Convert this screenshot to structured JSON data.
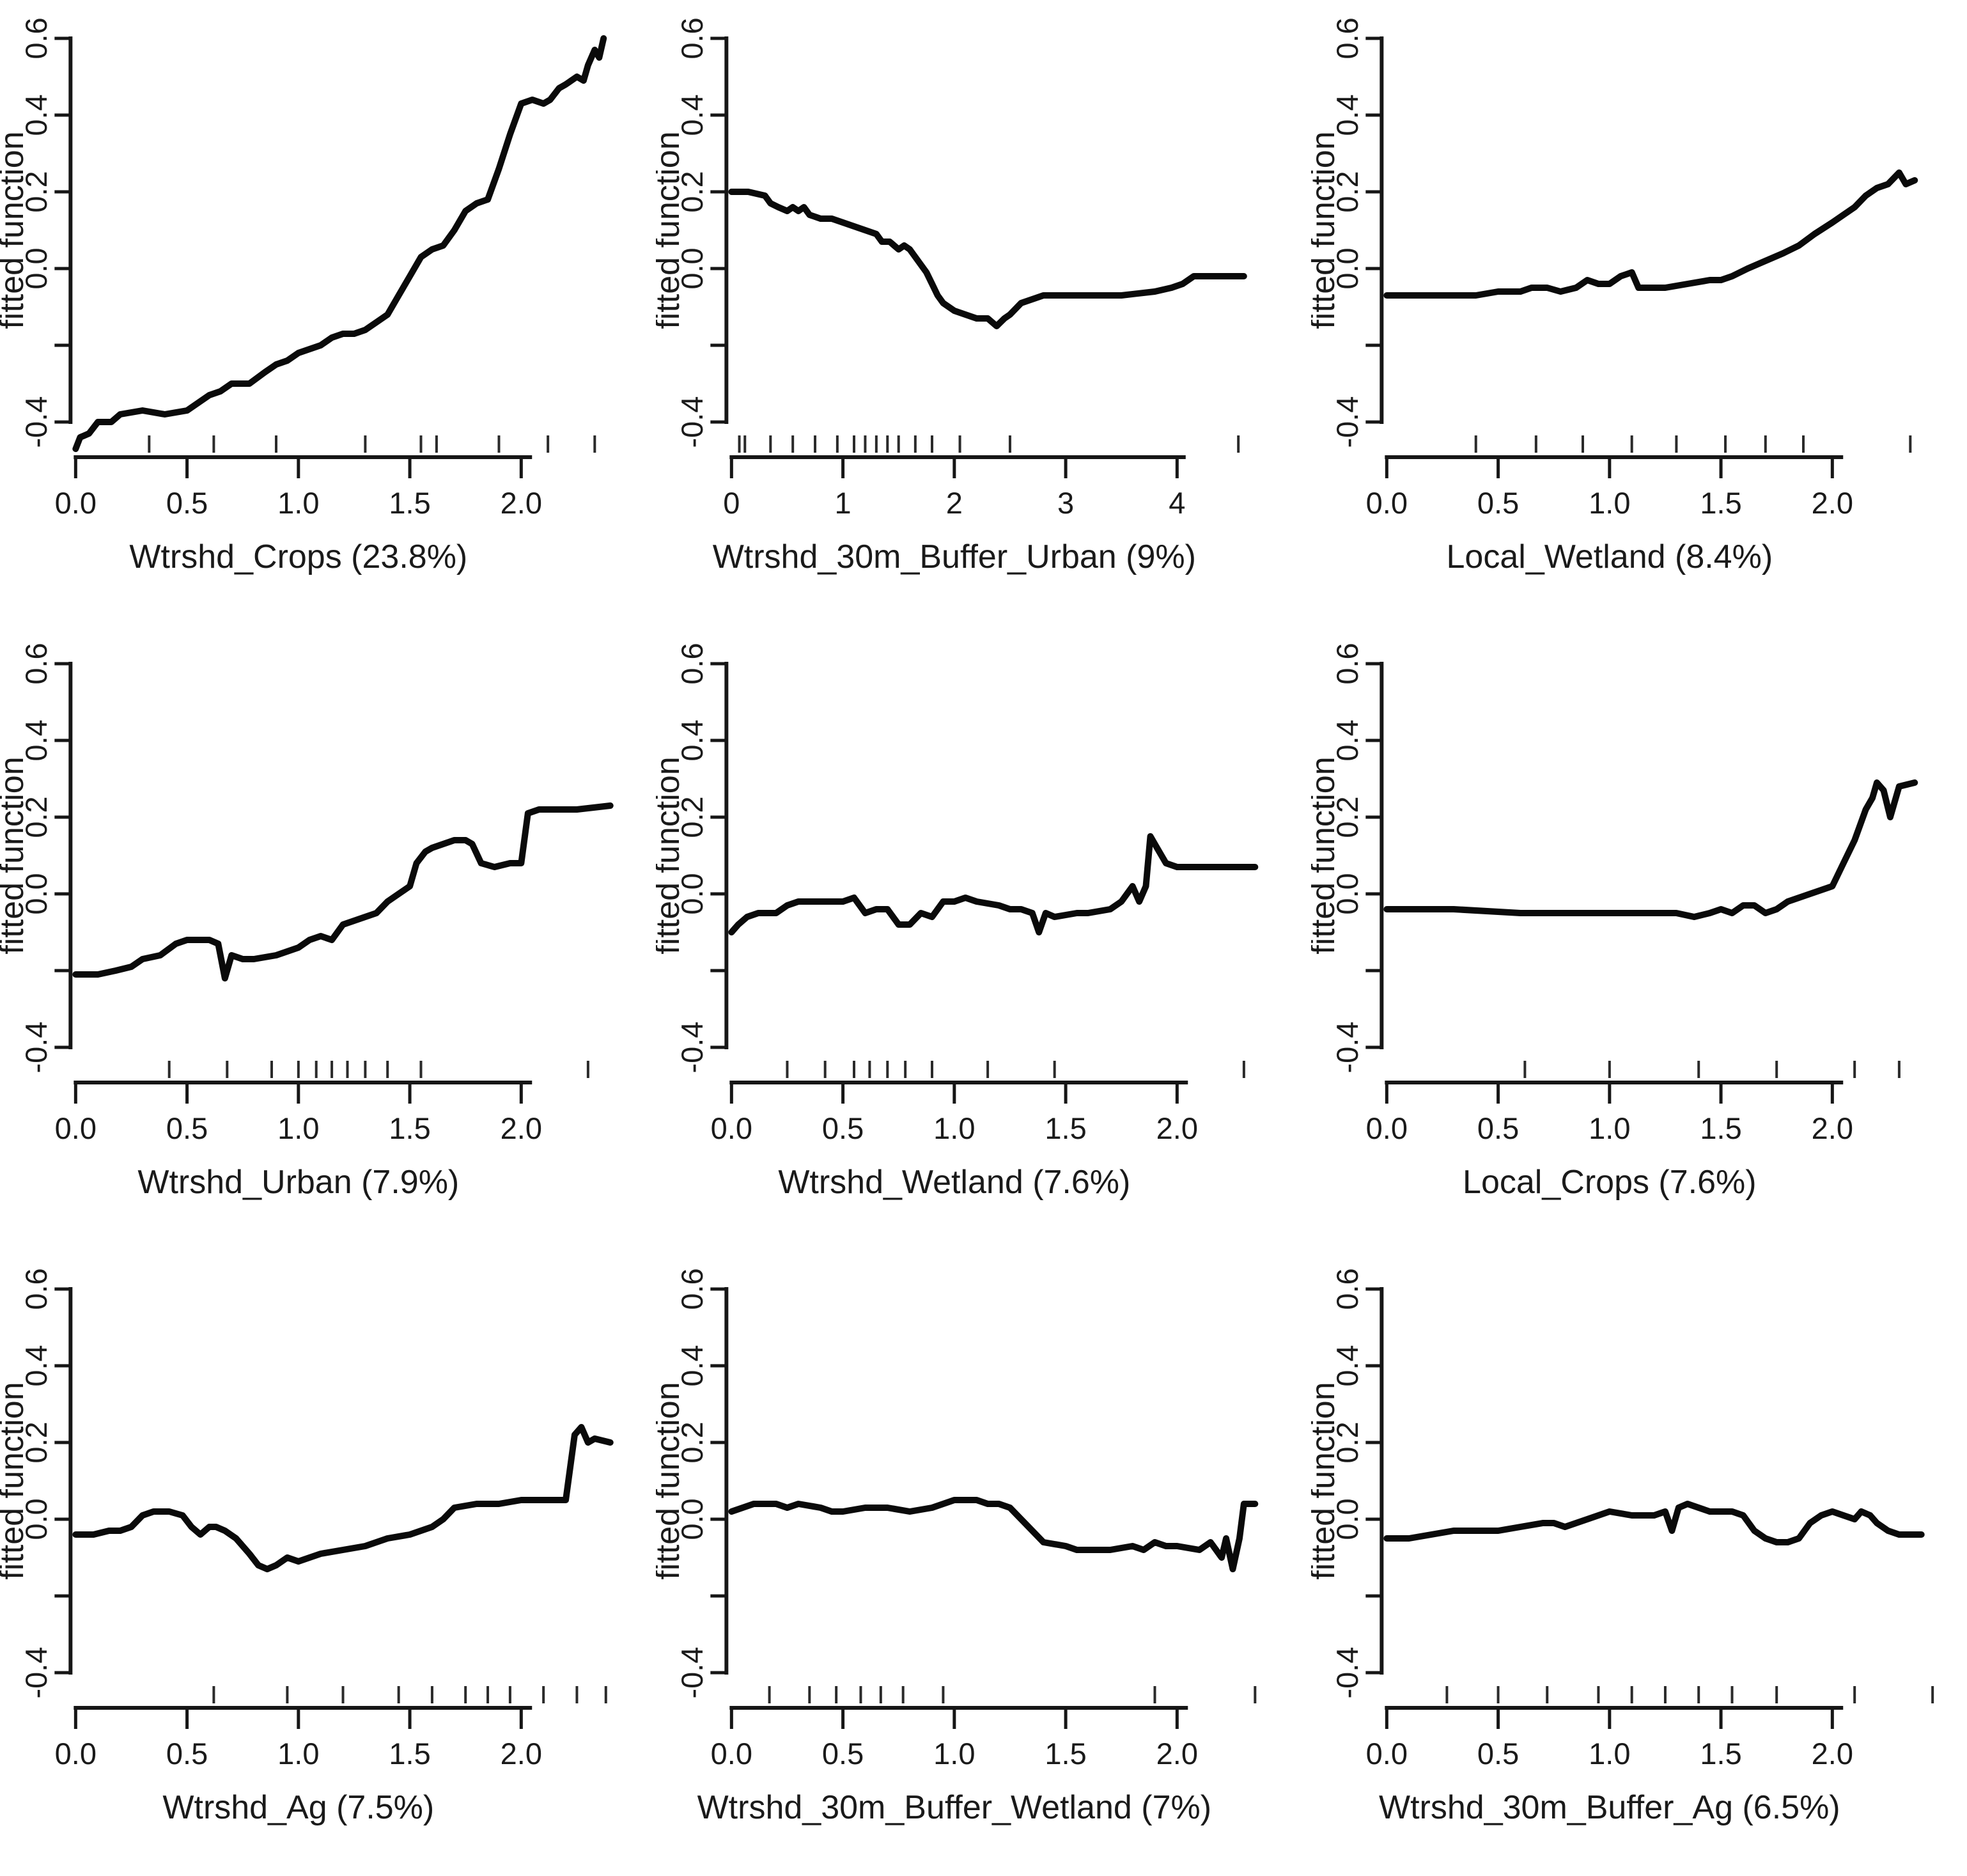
{
  "figure": {
    "background": "#ffffff",
    "curve_color": "#0a0a0a",
    "text_color": "#1a1a1a",
    "ylabel": "fitted function",
    "layout": "3x3 grid of fitted-function partial dependence line plots"
  },
  "chart_data": [
    {
      "type": "line",
      "xlabel": "Wtrshd_Crops  (23.8%)",
      "ylabel": "fitted function",
      "xlim": [
        0,
        2.45
      ],
      "ylim": [
        -0.5,
        0.65
      ],
      "xticks": [
        0.0,
        0.5,
        1.0,
        1.5,
        2.0
      ],
      "xtick_labels": [
        "0.0",
        "0.5",
        "1.0",
        "1.5",
        "2.0"
      ],
      "yticks": [
        0.6,
        0.4,
        0.2,
        0.0,
        -0.2,
        -0.4
      ],
      "ytick_labels": [
        "0.6",
        "0.4",
        "0.2",
        "0.0",
        "",
        "-0.4"
      ],
      "axis_span": [
        0,
        2.04
      ],
      "grid": false,
      "legend": false,
      "rug": [
        0.33,
        0.62,
        0.9,
        1.3,
        1.55,
        1.62,
        1.9,
        2.12,
        2.33
      ],
      "x": [
        0,
        0.02,
        0.06,
        0.1,
        0.16,
        0.2,
        0.3,
        0.4,
        0.5,
        0.55,
        0.6,
        0.65,
        0.7,
        0.78,
        0.85,
        0.9,
        0.95,
        1.0,
        1.05,
        1.1,
        1.15,
        1.2,
        1.25,
        1.3,
        1.35,
        1.4,
        1.45,
        1.5,
        1.55,
        1.6,
        1.65,
        1.7,
        1.75,
        1.8,
        1.85,
        1.9,
        1.95,
        2.0,
        2.05,
        2.1,
        2.13,
        2.17,
        2.2,
        2.25,
        2.28,
        2.3,
        2.33,
        2.35,
        2.37
      ],
      "y": [
        -0.47,
        -0.44,
        -0.43,
        -0.4,
        -0.4,
        -0.38,
        -0.37,
        -0.38,
        -0.37,
        -0.35,
        -0.33,
        -0.32,
        -0.3,
        -0.3,
        -0.27,
        -0.25,
        -0.24,
        -0.22,
        -0.21,
        -0.2,
        -0.18,
        -0.17,
        -0.17,
        -0.16,
        -0.14,
        -0.12,
        -0.07,
        -0.02,
        0.03,
        0.05,
        0.06,
        0.1,
        0.15,
        0.17,
        0.18,
        0.26,
        0.35,
        0.43,
        0.44,
        0.43,
        0.44,
        0.47,
        0.48,
        0.5,
        0.49,
        0.53,
        0.57,
        0.55,
        0.6
      ]
    },
    {
      "type": "line",
      "xlabel": "Wtrshd_30m_Buffer_Urban  (9%)",
      "ylabel": "fitted function",
      "xlim": [
        0,
        4.65
      ],
      "ylim": [
        -0.5,
        0.65
      ],
      "xticks": [
        0,
        1,
        2,
        3,
        4
      ],
      "xtick_labels": [
        "0",
        "1",
        "2",
        "3",
        "4"
      ],
      "yticks": [
        0.6,
        0.4,
        0.2,
        0.0,
        -0.2,
        -0.4
      ],
      "ytick_labels": [
        "0.6",
        "0.4",
        "0.2",
        "0.0",
        "",
        "-0.4"
      ],
      "axis_span": [
        0,
        4.06
      ],
      "grid": false,
      "legend": false,
      "rug": [
        0.07,
        0.12,
        0.35,
        0.55,
        0.75,
        0.95,
        1.1,
        1.2,
        1.3,
        1.4,
        1.5,
        1.65,
        1.8,
        2.05,
        2.5,
        4.55
      ],
      "x": [
        0,
        0.15,
        0.3,
        0.35,
        0.42,
        0.5,
        0.55,
        0.6,
        0.65,
        0.7,
        0.8,
        0.9,
        1.0,
        1.1,
        1.2,
        1.3,
        1.35,
        1.42,
        1.5,
        1.55,
        1.6,
        1.65,
        1.7,
        1.75,
        1.8,
        1.85,
        1.9,
        2.0,
        2.1,
        2.2,
        2.3,
        2.38,
        2.45,
        2.5,
        2.6,
        2.7,
        2.8,
        3.0,
        3.2,
        3.5,
        3.8,
        3.95,
        4.05,
        4.15,
        4.3,
        4.6
      ],
      "y": [
        0.2,
        0.2,
        0.19,
        0.17,
        0.16,
        0.15,
        0.16,
        0.15,
        0.16,
        0.14,
        0.13,
        0.13,
        0.12,
        0.11,
        0.1,
        0.09,
        0.07,
        0.07,
        0.05,
        0.06,
        0.05,
        0.03,
        0.01,
        -0.01,
        -0.04,
        -0.07,
        -0.09,
        -0.11,
        -0.12,
        -0.13,
        -0.13,
        -0.15,
        -0.13,
        -0.12,
        -0.09,
        -0.08,
        -0.07,
        -0.07,
        -0.07,
        -0.07,
        -0.06,
        -0.05,
        -0.04,
        -0.02,
        -0.02,
        -0.02
      ]
    },
    {
      "type": "line",
      "xlabel": "Local_Wetland  (8.4%)",
      "ylabel": "fitted function",
      "xlim": [
        0,
        2.45
      ],
      "ylim": [
        -0.5,
        0.65
      ],
      "xticks": [
        0.0,
        0.5,
        1.0,
        1.5,
        2.0
      ],
      "xtick_labels": [
        "0.0",
        "0.5",
        "1.0",
        "1.5",
        "2.0"
      ],
      "yticks": [
        0.6,
        0.4,
        0.2,
        0.0,
        -0.2,
        -0.4
      ],
      "ytick_labels": [
        "0.6",
        "0.4",
        "0.2",
        "0.0",
        "",
        "-0.4"
      ],
      "axis_span": [
        0,
        2.04
      ],
      "grid": false,
      "legend": false,
      "rug": [
        0.4,
        0.67,
        0.88,
        1.1,
        1.3,
        1.52,
        1.7,
        1.87,
        2.35
      ],
      "x": [
        0,
        0.2,
        0.4,
        0.5,
        0.6,
        0.65,
        0.72,
        0.78,
        0.85,
        0.9,
        0.95,
        1.0,
        1.05,
        1.1,
        1.13,
        1.18,
        1.25,
        1.35,
        1.45,
        1.5,
        1.55,
        1.62,
        1.7,
        1.78,
        1.85,
        1.92,
        2.0,
        2.05,
        2.1,
        2.15,
        2.2,
        2.25,
        2.3,
        2.33,
        2.37
      ],
      "y": [
        -0.07,
        -0.07,
        -0.07,
        -0.06,
        -0.06,
        -0.05,
        -0.05,
        -0.06,
        -0.05,
        -0.03,
        -0.04,
        -0.04,
        -0.02,
        -0.01,
        -0.05,
        -0.05,
        -0.05,
        -0.04,
        -0.03,
        -0.03,
        -0.02,
        0.0,
        0.02,
        0.04,
        0.06,
        0.09,
        0.12,
        0.14,
        0.16,
        0.19,
        0.21,
        0.22,
        0.25,
        0.22,
        0.23
      ]
    },
    {
      "type": "line",
      "xlabel": "Wtrshd_Urban  (7.9%)",
      "ylabel": "fitted function",
      "xlim": [
        0,
        2.45
      ],
      "ylim": [
        -0.5,
        0.65
      ],
      "xticks": [
        0.0,
        0.5,
        1.0,
        1.5,
        2.0
      ],
      "xtick_labels": [
        "0.0",
        "0.5",
        "1.0",
        "1.5",
        "2.0"
      ],
      "yticks": [
        0.6,
        0.4,
        0.2,
        0.0,
        -0.2,
        -0.4
      ],
      "ytick_labels": [
        "0.6",
        "0.4",
        "0.2",
        "0.0",
        "",
        "-0.4"
      ],
      "axis_span": [
        0,
        2.04
      ],
      "grid": false,
      "legend": false,
      "rug": [
        0.42,
        0.68,
        0.88,
        1.0,
        1.08,
        1.15,
        1.22,
        1.3,
        1.4,
        1.55,
        2.3
      ],
      "x": [
        0,
        0.1,
        0.18,
        0.25,
        0.3,
        0.38,
        0.45,
        0.5,
        0.55,
        0.6,
        0.64,
        0.67,
        0.7,
        0.75,
        0.8,
        0.9,
        0.95,
        1.0,
        1.05,
        1.1,
        1.15,
        1.2,
        1.3,
        1.35,
        1.4,
        1.45,
        1.5,
        1.53,
        1.57,
        1.6,
        1.65,
        1.7,
        1.75,
        1.78,
        1.82,
        1.88,
        1.95,
        2.0,
        2.03,
        2.08,
        2.15,
        2.25,
        2.4
      ],
      "y": [
        -0.21,
        -0.21,
        -0.2,
        -0.19,
        -0.17,
        -0.16,
        -0.13,
        -0.12,
        -0.12,
        -0.12,
        -0.13,
        -0.22,
        -0.16,
        -0.17,
        -0.17,
        -0.16,
        -0.15,
        -0.14,
        -0.12,
        -0.11,
        -0.12,
        -0.08,
        -0.06,
        -0.05,
        -0.02,
        0.0,
        0.02,
        0.08,
        0.11,
        0.12,
        0.13,
        0.14,
        0.14,
        0.13,
        0.08,
        0.07,
        0.08,
        0.08,
        0.21,
        0.22,
        0.22,
        0.22,
        0.23
      ]
    },
    {
      "type": "line",
      "xlabel": "Wtrshd_Wetland  (7.6%)",
      "ylabel": "fitted function",
      "xlim": [
        0,
        2.45
      ],
      "ylim": [
        -0.5,
        0.65
      ],
      "xticks": [
        0.0,
        0.5,
        1.0,
        1.5,
        2.0
      ],
      "xtick_labels": [
        "0.0",
        "0.5",
        "1.0",
        "1.5",
        "2.0"
      ],
      "yticks": [
        0.6,
        0.4,
        0.2,
        0.0,
        -0.2,
        -0.4
      ],
      "ytick_labels": [
        "0.6",
        "0.4",
        "0.2",
        "0.0",
        "",
        "-0.4"
      ],
      "axis_span": [
        0,
        2.04
      ],
      "grid": false,
      "legend": false,
      "rug": [
        0.25,
        0.42,
        0.55,
        0.62,
        0.7,
        0.78,
        0.9,
        1.15,
        1.45,
        2.3
      ],
      "x": [
        0,
        0.03,
        0.07,
        0.12,
        0.2,
        0.25,
        0.3,
        0.4,
        0.5,
        0.55,
        0.6,
        0.65,
        0.7,
        0.75,
        0.8,
        0.85,
        0.9,
        0.95,
        1.0,
        1.05,
        1.1,
        1.2,
        1.25,
        1.3,
        1.35,
        1.38,
        1.41,
        1.45,
        1.55,
        1.6,
        1.7,
        1.75,
        1.8,
        1.83,
        1.86,
        1.88,
        1.91,
        1.95,
        2.0,
        2.1,
        2.2,
        2.35
      ],
      "y": [
        -0.1,
        -0.08,
        -0.06,
        -0.05,
        -0.05,
        -0.03,
        -0.02,
        -0.02,
        -0.02,
        -0.01,
        -0.05,
        -0.04,
        -0.04,
        -0.08,
        -0.08,
        -0.05,
        -0.06,
        -0.02,
        -0.02,
        -0.01,
        -0.02,
        -0.03,
        -0.04,
        -0.04,
        -0.05,
        -0.1,
        -0.05,
        -0.06,
        -0.05,
        -0.05,
        -0.04,
        -0.02,
        0.02,
        -0.02,
        0.02,
        0.15,
        0.12,
        0.08,
        0.07,
        0.07,
        0.07,
        0.07
      ]
    },
    {
      "type": "line",
      "xlabel": "Local_Crops  (7.6%)",
      "ylabel": "fitted function",
      "xlim": [
        0,
        2.45
      ],
      "ylim": [
        -0.5,
        0.65
      ],
      "xticks": [
        0.0,
        0.5,
        1.0,
        1.5,
        2.0
      ],
      "xtick_labels": [
        "0.0",
        "0.5",
        "1.0",
        "1.5",
        "2.0"
      ],
      "yticks": [
        0.6,
        0.4,
        0.2,
        0.0,
        -0.2,
        -0.4
      ],
      "ytick_labels": [
        "0.6",
        "0.4",
        "0.2",
        "0.0",
        "",
        "-0.4"
      ],
      "axis_span": [
        0,
        2.04
      ],
      "grid": false,
      "legend": false,
      "rug": [
        0.62,
        1.0,
        1.4,
        1.75,
        2.1,
        2.3
      ],
      "x": [
        0,
        0.3,
        0.6,
        0.9,
        1.1,
        1.3,
        1.38,
        1.45,
        1.5,
        1.55,
        1.6,
        1.65,
        1.7,
        1.75,
        1.8,
        1.85,
        1.9,
        1.95,
        2.0,
        2.05,
        2.1,
        2.15,
        2.18,
        2.2,
        2.23,
        2.26,
        2.3,
        2.37
      ],
      "y": [
        -0.04,
        -0.04,
        -0.05,
        -0.05,
        -0.05,
        -0.05,
        -0.06,
        -0.05,
        -0.04,
        -0.05,
        -0.03,
        -0.03,
        -0.05,
        -0.04,
        -0.02,
        -0.01,
        0.0,
        0.01,
        0.02,
        0.08,
        0.14,
        0.22,
        0.25,
        0.29,
        0.27,
        0.2,
        0.28,
        0.29
      ]
    },
    {
      "type": "line",
      "xlabel": "Wtrshd_Ag  (7.5%)",
      "ylabel": "fitted function",
      "xlim": [
        0,
        2.45
      ],
      "ylim": [
        -0.5,
        0.65
      ],
      "xticks": [
        0.0,
        0.5,
        1.0,
        1.5,
        2.0
      ],
      "xtick_labels": [
        "0.0",
        "0.5",
        "1.0",
        "1.5",
        "2.0"
      ],
      "yticks": [
        0.6,
        0.4,
        0.2,
        0.0,
        -0.2,
        -0.4
      ],
      "ytick_labels": [
        "0.6",
        "0.4",
        "0.2",
        "0.0",
        "",
        "-0.4"
      ],
      "axis_span": [
        0,
        2.04
      ],
      "grid": false,
      "legend": false,
      "rug": [
        0.62,
        0.95,
        1.2,
        1.45,
        1.6,
        1.75,
        1.85,
        1.95,
        2.1,
        2.25,
        2.38
      ],
      "x": [
        0,
        0.08,
        0.15,
        0.2,
        0.25,
        0.3,
        0.35,
        0.42,
        0.48,
        0.52,
        0.56,
        0.6,
        0.63,
        0.67,
        0.72,
        0.78,
        0.82,
        0.86,
        0.9,
        0.95,
        1.0,
        1.05,
        1.1,
        1.2,
        1.3,
        1.4,
        1.5,
        1.6,
        1.65,
        1.7,
        1.8,
        1.9,
        2.0,
        2.1,
        2.2,
        2.24,
        2.27,
        2.3,
        2.33,
        2.4
      ],
      "y": [
        -0.04,
        -0.04,
        -0.03,
        -0.03,
        -0.02,
        0.01,
        0.02,
        0.02,
        0.01,
        -0.02,
        -0.04,
        -0.02,
        -0.02,
        -0.03,
        -0.05,
        -0.09,
        -0.12,
        -0.13,
        -0.12,
        -0.1,
        -0.11,
        -0.1,
        -0.09,
        -0.08,
        -0.07,
        -0.05,
        -0.04,
        -0.02,
        0.0,
        0.03,
        0.04,
        0.04,
        0.05,
        0.05,
        0.05,
        0.22,
        0.24,
        0.2,
        0.21,
        0.2
      ]
    },
    {
      "type": "line",
      "xlabel": "Wtrshd_30m_Buffer_Wetland  (7%)",
      "ylabel": "fitted function",
      "xlim": [
        0,
        2.45
      ],
      "ylim": [
        -0.5,
        0.65
      ],
      "xticks": [
        0.0,
        0.5,
        1.0,
        1.5,
        2.0
      ],
      "xtick_labels": [
        "0.0",
        "0.5",
        "1.0",
        "1.5",
        "2.0"
      ],
      "yticks": [
        0.6,
        0.4,
        0.2,
        0.0,
        -0.2,
        -0.4
      ],
      "ytick_labels": [
        "0.6",
        "0.4",
        "0.2",
        "0.0",
        "",
        "-0.4"
      ],
      "axis_span": [
        0,
        2.04
      ],
      "grid": false,
      "legend": false,
      "rug": [
        0.17,
        0.35,
        0.47,
        0.58,
        0.67,
        0.77,
        0.95,
        1.9,
        2.35
      ],
      "x": [
        0,
        0.05,
        0.1,
        0.2,
        0.25,
        0.3,
        0.4,
        0.45,
        0.5,
        0.6,
        0.7,
        0.8,
        0.9,
        0.95,
        1.0,
        1.1,
        1.15,
        1.2,
        1.25,
        1.3,
        1.35,
        1.4,
        1.5,
        1.55,
        1.6,
        1.7,
        1.8,
        1.85,
        1.9,
        1.95,
        2.0,
        2.1,
        2.15,
        2.2,
        2.22,
        2.25,
        2.28,
        2.3,
        2.35
      ],
      "y": [
        0.02,
        0.03,
        0.04,
        0.04,
        0.03,
        0.04,
        0.03,
        0.02,
        0.02,
        0.03,
        0.03,
        0.02,
        0.03,
        0.04,
        0.05,
        0.05,
        0.04,
        0.04,
        0.03,
        0.0,
        -0.03,
        -0.06,
        -0.07,
        -0.08,
        -0.08,
        -0.08,
        -0.07,
        -0.08,
        -0.06,
        -0.07,
        -0.07,
        -0.08,
        -0.06,
        -0.1,
        -0.05,
        -0.13,
        -0.05,
        0.04,
        0.04
      ]
    },
    {
      "type": "line",
      "xlabel": "Wtrshd_30m_Buffer_Ag  (6.5%)",
      "ylabel": "fitted function",
      "xlim": [
        0,
        2.45
      ],
      "ylim": [
        -0.5,
        0.65
      ],
      "xticks": [
        0.0,
        0.5,
        1.0,
        1.5,
        2.0
      ],
      "xtick_labels": [
        "0.0",
        "0.5",
        "1.0",
        "1.5",
        "2.0"
      ],
      "yticks": [
        0.6,
        0.4,
        0.2,
        0.0,
        -0.2,
        -0.4
      ],
      "ytick_labels": [
        "0.6",
        "0.4",
        "0.2",
        "0.0",
        "",
        "-0.4"
      ],
      "axis_span": [
        0,
        2.04
      ],
      "grid": false,
      "legend": false,
      "rug": [
        0.27,
        0.5,
        0.72,
        0.95,
        1.1,
        1.25,
        1.4,
        1.55,
        1.75,
        2.1,
        2.45
      ],
      "x": [
        0,
        0.1,
        0.2,
        0.3,
        0.4,
        0.5,
        0.6,
        0.7,
        0.75,
        0.8,
        0.85,
        0.9,
        0.95,
        1.0,
        1.1,
        1.15,
        1.2,
        1.25,
        1.28,
        1.31,
        1.35,
        1.4,
        1.45,
        1.5,
        1.55,
        1.6,
        1.65,
        1.7,
        1.75,
        1.8,
        1.85,
        1.9,
        1.95,
        2.0,
        2.05,
        2.1,
        2.13,
        2.17,
        2.2,
        2.25,
        2.3,
        2.4
      ],
      "y": [
        -0.05,
        -0.05,
        -0.04,
        -0.03,
        -0.03,
        -0.03,
        -0.02,
        -0.01,
        -0.01,
        -0.02,
        -0.01,
        0.0,
        0.01,
        0.02,
        0.01,
        0.01,
        0.01,
        0.02,
        -0.03,
        0.03,
        0.04,
        0.03,
        0.02,
        0.02,
        0.02,
        0.01,
        -0.03,
        -0.05,
        -0.06,
        -0.06,
        -0.05,
        -0.01,
        0.01,
        0.02,
        0.01,
        0.0,
        0.02,
        0.01,
        -0.01,
        -0.03,
        -0.04,
        -0.04
      ]
    }
  ]
}
